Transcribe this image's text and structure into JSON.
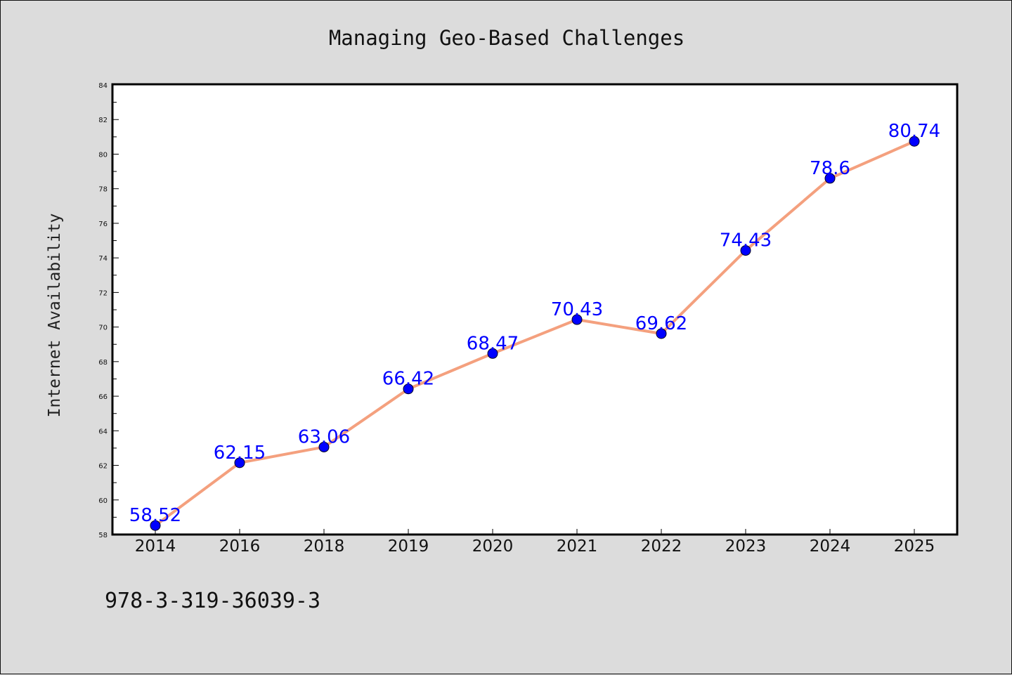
{
  "chart_data": {
    "type": "line",
    "title": "Managing Geo-Based Challenges",
    "xlabel": "",
    "ylabel": "Internet Availability",
    "categories": [
      "2014",
      "2016",
      "2018",
      "2019",
      "2020",
      "2021",
      "2022",
      "2023",
      "2024",
      "2025"
    ],
    "series": [
      {
        "values": [
          58.52,
          62.15,
          63.06,
          66.42,
          68.47,
          70.43,
          69.62,
          74.43,
          78.6,
          80.74
        ],
        "data_labels": [
          "58.52",
          "62.15",
          "63.06",
          "66.42",
          "68.47",
          "70.43",
          "69.62",
          "74.43",
          "78.6",
          "80.74"
        ]
      }
    ],
    "ylim": [
      58,
      84
    ],
    "yticks": [
      "58",
      "60",
      "62",
      "64",
      "66",
      "68",
      "70",
      "72",
      "74",
      "76",
      "78",
      "80",
      "82",
      "84"
    ],
    "grid": false,
    "line_color": "#f4a07e",
    "marker_color": "#0000ff",
    "label_color": "#0000ff",
    "background_color": "#dcdcdc",
    "plot_background_color": "#ffffff"
  },
  "footnote": "978-3-319-36039-3"
}
